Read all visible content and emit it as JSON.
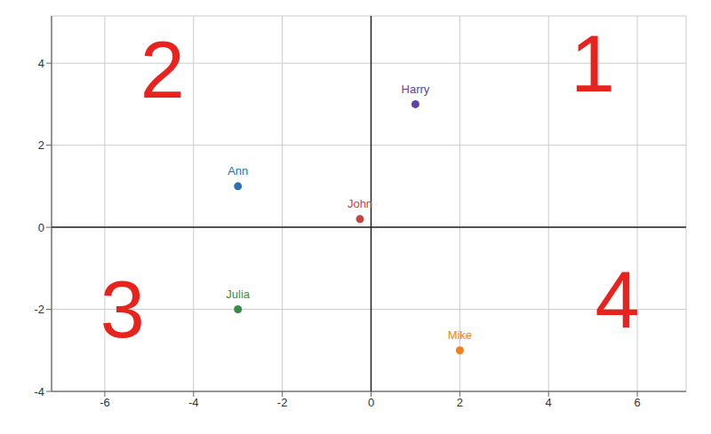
{
  "chart_data": {
    "type": "scatter",
    "series": [
      {
        "name": "Harry",
        "color": "#6042a6",
        "x": [
          1
        ],
        "values": [
          3
        ]
      },
      {
        "name": "Ann",
        "color": "#2d70b3",
        "x": [
          -3
        ],
        "values": [
          1
        ]
      },
      {
        "name": "John",
        "color": "#c74440",
        "x": [
          -0.25
        ],
        "values": [
          0.2
        ]
      },
      {
        "name": "Julia",
        "color": "#388c46",
        "x": [
          -3
        ],
        "values": [
          -2
        ]
      },
      {
        "name": "Mike",
        "color": "#fa7e19",
        "x": [
          2
        ],
        "values": [
          -3
        ]
      }
    ],
    "xlim": [
      -7.2,
      7.1
    ],
    "ylim": [
      -4,
      5.15
    ],
    "xticks": [
      -6,
      -4,
      -2,
      0,
      2,
      4,
      6
    ],
    "yticks": [
      -4,
      -2,
      0,
      2,
      4
    ],
    "grid": true,
    "annotations": [
      {
        "text": "1",
        "x": 5.0,
        "y": 4.0,
        "color": "#e8231e"
      },
      {
        "text": "2",
        "x": -4.7,
        "y": 3.85,
        "color": "#e8231e"
      },
      {
        "text": "3",
        "x": -5.6,
        "y": -2.0,
        "color": "#e8231e"
      },
      {
        "text": "4",
        "x": 5.55,
        "y": -1.75,
        "color": "#e8231e"
      }
    ]
  }
}
